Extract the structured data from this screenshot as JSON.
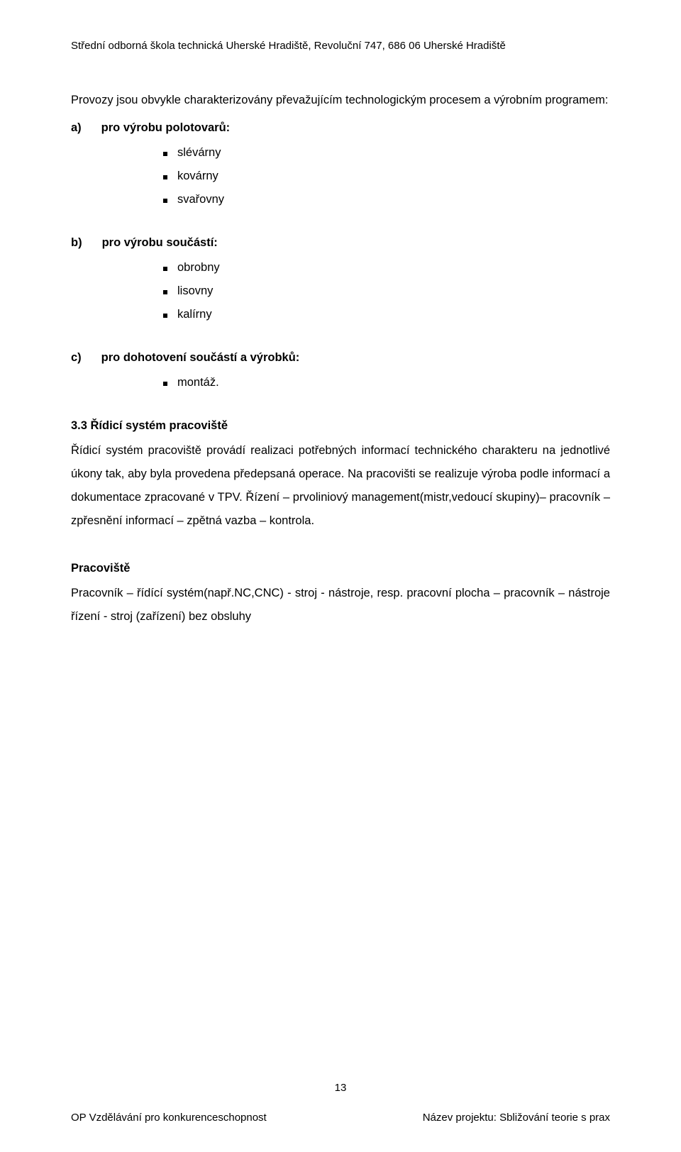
{
  "header": "Střední odborná škola technická Uherské Hradiště, Revoluční 747, 686 06 Uherské Hradiště",
  "intro": "Provozy jsou obvykle charakterizovány převažujícím technologickým procesem a výrobním programem:",
  "list_a": {
    "letter": "a)",
    "title": "pro výrobu polotovarů:",
    "items": [
      "slévárny",
      "kovárny",
      "svařovny"
    ]
  },
  "list_b": {
    "letter": "b)",
    "title": "pro výrobu součástí:",
    "items": [
      "obrobny",
      "lisovny",
      "kalírny"
    ]
  },
  "list_c": {
    "letter": "c)",
    "title": "pro dohotovení součástí a výrobků:",
    "items": [
      "montáž."
    ]
  },
  "section_heading": "3.3 Řídicí systém pracoviště",
  "section_body": "Řídicí systém pracoviště provádí realizaci potřebných informací technického charakteru na jednotlivé úkony tak, aby byla provedena předepsaná operace. Na pracovišti se realizuje výroba podle informací a dokumentace zpracované v TPV. Řízení – prvoliniový management(mistr,vedoucí skupiny)– pracovník – zpřesnění informací – zpětná vazba – kontrola.",
  "sub_heading": "Pracoviště",
  "sub_body": "Pracovník – řídící systém(např.NC,CNC) - stroj - nástroje, resp. pracovní plocha – pracovník – nástroje řízení - stroj (zařízení) bez obsluhy",
  "page_number": "13",
  "footer_left": "OP Vzdělávání pro konkurenceschopnost",
  "footer_right": "Název projektu: Sbližování teorie s prax"
}
